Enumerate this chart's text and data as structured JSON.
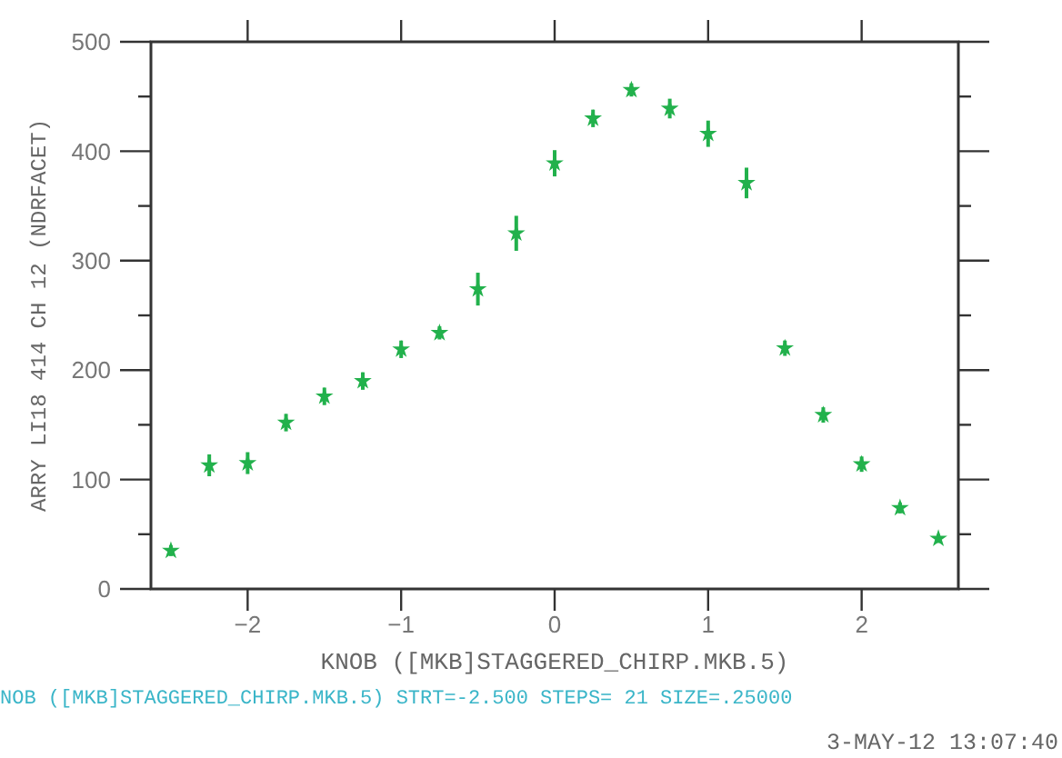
{
  "chart_data": {
    "type": "scatter",
    "xlabel": "KNOB ([MKB]STAGGERED_CHIRP.MKB.5)",
    "ylabel": "ARRY LI18 414 CH  12 (NDRFACET)",
    "x": [
      -2.5,
      -2.25,
      -2,
      -1.75,
      -1.5,
      -1.25,
      -1,
      -0.75,
      -0.5,
      -0.25,
      0,
      0.25,
      0.5,
      0.75,
      1,
      1.25,
      1.5,
      1.75,
      2,
      2.25,
      2.5
    ],
    "series": [
      {
        "color": "#22b14c",
        "values": [
          35,
          113,
          115,
          152,
          176,
          190,
          219,
          234,
          274,
          325,
          389,
          430,
          456,
          439,
          416,
          371,
          220,
          159,
          114,
          74,
          46
        ],
        "errors": [
          5,
          10,
          10,
          8,
          8,
          8,
          8,
          6,
          15,
          16,
          12,
          8,
          6,
          9,
          12,
          14,
          7,
          7,
          7,
          5,
          4
        ]
      }
    ],
    "marker": "star",
    "xlim": [
      -2.63,
      2.63
    ],
    "xticks": [
      -2,
      -1,
      0,
      1,
      2
    ],
    "ylim": [
      0,
      500
    ],
    "yticks": [
      0,
      {
        "value": 50,
        "label": null
      },
      100,
      {
        "value": 150,
        "label": null
      },
      200,
      {
        "value": 250,
        "label": null
      },
      300,
      {
        "value": 350,
        "label": null
      },
      400,
      {
        "value": 450,
        "label": null
      },
      500
    ],
    "grid": false,
    "annotations": [
      "NOB ([MKB]STAGGERED_CHIRP.MKB.5)  STRT=-2.500 STEPS= 21 SIZE=.25000",
      "3-MAY-12 13:07:40"
    ]
  }
}
